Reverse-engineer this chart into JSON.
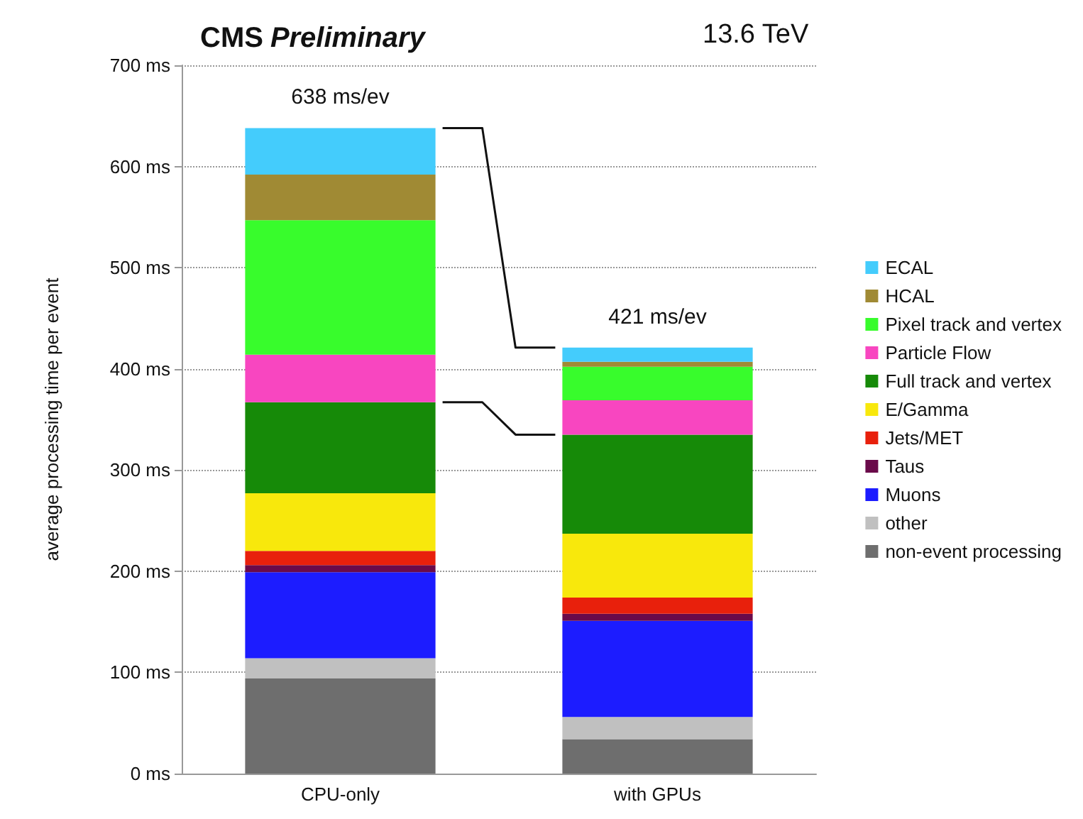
{
  "chart_data": {
    "type": "bar",
    "stacked": true,
    "title": "CMS Preliminary",
    "ylabel": "average processing time per event",
    "annotations": [
      "13.6 TeV"
    ],
    "categories": [
      "CPU-only",
      "with GPUs"
    ],
    "series": [
      {
        "name": "non-event processing",
        "color": "#6e6e6e",
        "values": [
          94,
          34
        ]
      },
      {
        "name": "other",
        "color": "#c0c0c0",
        "values": [
          20,
          22
        ]
      },
      {
        "name": "Muons",
        "color": "#1c1cff",
        "values": [
          85,
          95
        ]
      },
      {
        "name": "Taus",
        "color": "#6a0a4a",
        "values": [
          7,
          7
        ]
      },
      {
        "name": "Jets/MET",
        "color": "#e8200c",
        "values": [
          14,
          16
        ]
      },
      {
        "name": "E/Gamma",
        "color": "#f8e80c",
        "values": [
          57,
          63
        ]
      },
      {
        "name": "Full track and vertex",
        "color": "#168a08",
        "values": [
          90,
          98
        ]
      },
      {
        "name": "Particle Flow",
        "color": "#f846c0",
        "values": [
          47,
          34
        ]
      },
      {
        "name": "Pixel track and vertex",
        "color": "#38fc2c",
        "values": [
          133,
          33
        ]
      },
      {
        "name": "HCAL",
        "color": "#a08a34",
        "values": [
          45,
          5
        ]
      },
      {
        "name": "ECAL",
        "color": "#44ccfc",
        "values": [
          46,
          14
        ]
      }
    ],
    "totals": [
      "638 ms/ev",
      "421 ms/ev"
    ],
    "ylim": [
      0,
      700
    ],
    "yticks": [
      {
        "value": 0,
        "label": "0 ms"
      },
      {
        "value": 100,
        "label": "100 ms"
      },
      {
        "value": 200,
        "label": "200 ms"
      },
      {
        "value": 300,
        "label": "300 ms"
      },
      {
        "value": 400,
        "label": "400 ms"
      },
      {
        "value": 500,
        "label": "500 ms"
      },
      {
        "value": 600,
        "label": "600 ms"
      },
      {
        "value": 700,
        "label": "700 ms"
      }
    ],
    "grid": "y",
    "legend": "right"
  }
}
